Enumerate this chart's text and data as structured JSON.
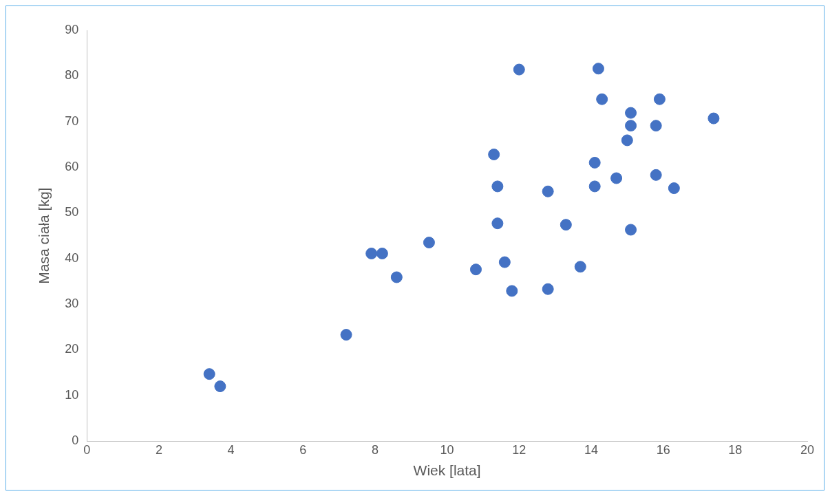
{
  "chart_data": {
    "type": "scatter",
    "xlabel": "Wiek [lata]",
    "ylabel": "Masa ciała [kg]",
    "x": [
      3.4,
      3.7,
      7.2,
      7.9,
      8.2,
      8.6,
      9.5,
      10.8,
      11.3,
      11.4,
      11.4,
      11.6,
      11.8,
      12.0,
      12.8,
      12.8,
      13.3,
      13.7,
      14.1,
      14.1,
      14.2,
      14.3,
      14.7,
      15.0,
      15.1,
      15.1,
      15.1,
      15.8,
      15.8,
      15.9,
      16.3,
      17.4
    ],
    "values": [
      14.7,
      12.0,
      23.3,
      41.1,
      41.1,
      35.9,
      43.5,
      37.6,
      62.8,
      55.8,
      47.7,
      39.2,
      32.9,
      81.4,
      54.7,
      33.3,
      47.4,
      38.2,
      61.0,
      55.8,
      81.6,
      74.9,
      57.6,
      65.9,
      71.9,
      69.1,
      46.3,
      69.1,
      58.3,
      74.9,
      55.4,
      70.7
    ],
    "color": "#4472c4",
    "marker": "circle",
    "grid": false,
    "legend": false,
    "xlim": [
      0,
      20
    ],
    "xticks": [
      0,
      2,
      4,
      6,
      8,
      10,
      12,
      14,
      16,
      18,
      20
    ],
    "ylim": [
      0,
      90
    ],
    "yticks": [
      0,
      10,
      20,
      30,
      40,
      50,
      60,
      70,
      80,
      90
    ]
  }
}
